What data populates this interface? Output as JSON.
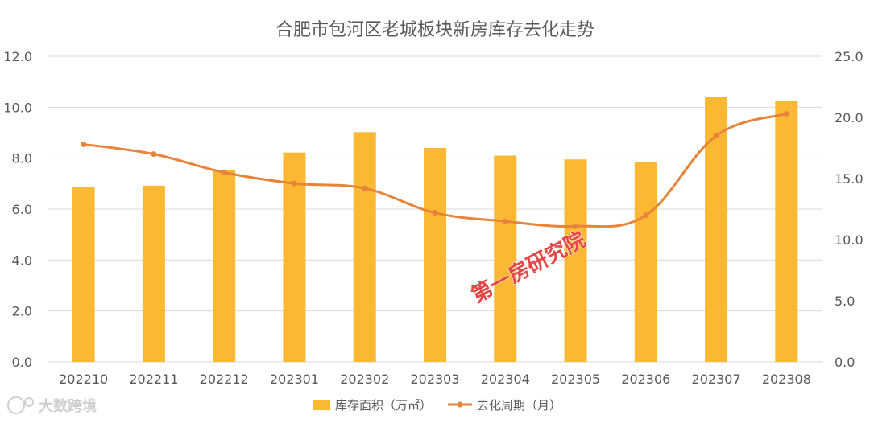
{
  "chart_data": {
    "type": "bar",
    "title": "合肥市包河区老城板块新房库存去化走势",
    "categories": [
      "202210",
      "202211",
      "202212",
      "202301",
      "202302",
      "202303",
      "202304",
      "202305",
      "202306",
      "202307",
      "202308"
    ],
    "series": [
      {
        "name": "库存面积（万㎡）",
        "type": "bar",
        "axis": "left",
        "color": "#FBB833",
        "values": [
          6.85,
          6.92,
          7.55,
          8.22,
          9.02,
          8.4,
          8.1,
          7.95,
          7.85,
          10.42,
          10.25
        ]
      },
      {
        "name": "去化周期（月）",
        "type": "line",
        "axis": "right",
        "color": "#E8833A",
        "values": [
          17.8,
          17.0,
          15.5,
          14.6,
          14.2,
          12.2,
          11.5,
          11.1,
          12.0,
          18.5,
          20.3
        ]
      }
    ],
    "y_left": {
      "range": [
        0,
        12
      ],
      "ticks": [
        "0.0",
        "2.0",
        "4.0",
        "6.0",
        "8.0",
        "10.0",
        "12.0"
      ]
    },
    "y_right": {
      "range": [
        0,
        25
      ],
      "ticks": [
        "0.0",
        "5.0",
        "10.0",
        "15.0",
        "20.0",
        "25.0"
      ]
    },
    "grid": true,
    "legend_position": "bottom"
  },
  "watermark": "第一房研究院",
  "brand": "大数跨境"
}
